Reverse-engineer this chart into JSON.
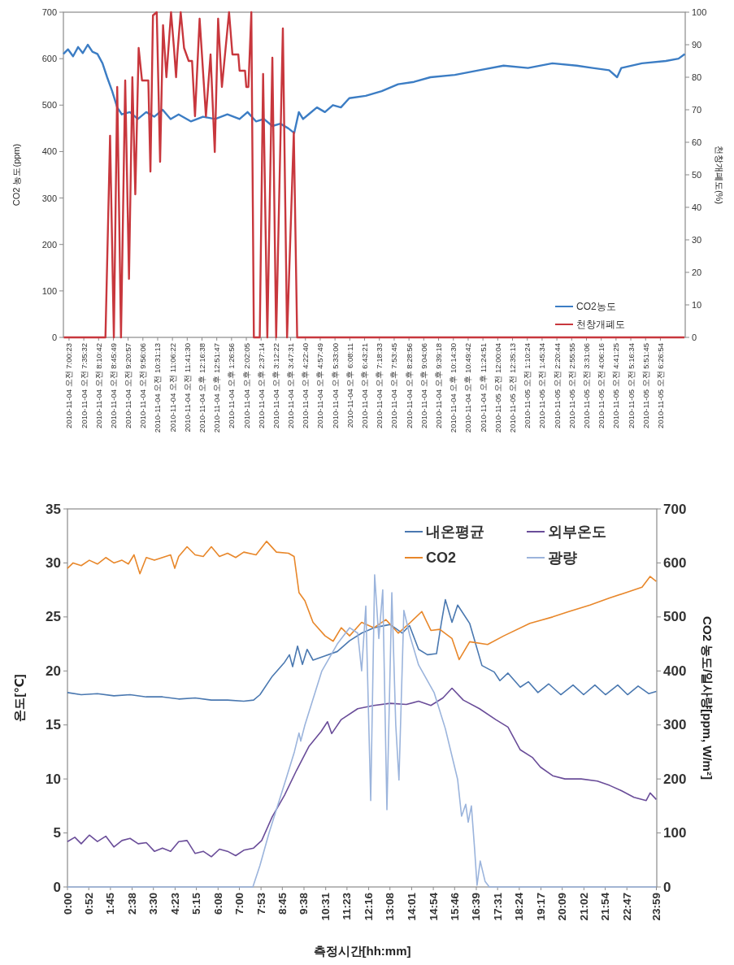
{
  "chart_data": [
    {
      "type": "line",
      "ylabel": "CO2 농도(ppm)",
      "y2label": "천창개폐도(%)",
      "legend": "bottom right",
      "xlim": [
        "2010-11-04T06:47",
        "2010-11-05T07:26"
      ],
      "xticks": [
        {
          "value": "2010-11-04T07:00:23",
          "label": "2010-11-04 오전 7:00:23"
        },
        {
          "value": "2010-11-04T07:35:32",
          "label": "2010-11-04 오전 7:35:32"
        },
        {
          "value": "2010-11-04T08:10:42",
          "label": "2010-11-04 오전 8:10:42"
        },
        {
          "value": "2010-11-04T08:45:49",
          "label": "2010-11-04 오전 8:45:49"
        },
        {
          "value": "2010-11-04T09:20:57",
          "label": "2010-11-04 오전 9:20:57"
        },
        {
          "value": "2010-11-04T09:56:06",
          "label": "2010-11-04 오전 9:56:06"
        },
        {
          "value": "2010-11-04T10:31:13",
          "label": "2010-11-04 오전 10:31:13"
        },
        {
          "value": "2010-11-04T11:06:22",
          "label": "2010-11-04 오전 11:06:22"
        },
        {
          "value": "2010-11-04T11:41:30",
          "label": "2010-11-04 오전 11:41:30"
        },
        {
          "value": "2010-11-04T12:16:38",
          "label": "2010-11-04 오후 12:16:38"
        },
        {
          "value": "2010-11-04T12:51:47",
          "label": "2010-11-04 오후 12:51:47"
        },
        {
          "value": "2010-11-04T13:26:56",
          "label": "2010-11-04 오후 1:26:56"
        },
        {
          "value": "2010-11-04T14:02:05",
          "label": "2010-11-04 오후 2:02:05"
        },
        {
          "value": "2010-11-04T14:37:14",
          "label": "2010-11-04 오후 2:37:14"
        },
        {
          "value": "2010-11-04T15:12:22",
          "label": "2010-11-04 오후 3:12:22"
        },
        {
          "value": "2010-11-04T15:47:31",
          "label": "2010-11-04 오후 3:47:31"
        },
        {
          "value": "2010-11-04T16:22:40",
          "label": "2010-11-04 오후 4:22:40"
        },
        {
          "value": "2010-11-04T16:57:49",
          "label": "2010-11-04 오후 4:57:49"
        },
        {
          "value": "2010-11-04T17:33:00",
          "label": "2010-11-04 오후 5:33:00"
        },
        {
          "value": "2010-11-04T18:08:11",
          "label": "2010-11-04 오후 6:08:11"
        },
        {
          "value": "2010-11-04T18:43:21",
          "label": "2010-11-04 오후 6:43:21"
        },
        {
          "value": "2010-11-04T19:18:33",
          "label": "2010-11-04 오후 7:18:33"
        },
        {
          "value": "2010-11-04T19:53:45",
          "label": "2010-11-04 오후 7:53:45"
        },
        {
          "value": "2010-11-04T20:28:56",
          "label": "2010-11-04 오후 8:28:56"
        },
        {
          "value": "2010-11-04T21:04:06",
          "label": "2010-11-04 오후 9:04:06"
        },
        {
          "value": "2010-11-04T21:39:18",
          "label": "2010-11-04 오후 9:39:18"
        },
        {
          "value": "2010-11-04T22:14:30",
          "label": "2010-11-04 오후 10:14:30"
        },
        {
          "value": "2010-11-04T22:49:42",
          "label": "2010-11-04 오후 10:49:42"
        },
        {
          "value": "2010-11-04T23:24:51",
          "label": "2010-11-04 오후 11:24:51"
        },
        {
          "value": "2010-11-05T00:00:04",
          "label": "2010-11-05 오전 12:00:04"
        },
        {
          "value": "2010-11-05T00:35:13",
          "label": "2010-11-05 오전 12:35:13"
        },
        {
          "value": "2010-11-05T01:10:24",
          "label": "2010-11-05 오전 1:10:24"
        },
        {
          "value": "2010-11-05T01:45:34",
          "label": "2010-11-05 오전 1:45:34"
        },
        {
          "value": "2010-11-05T02:20:44",
          "label": "2010-11-05 오전 2:20:44"
        },
        {
          "value": "2010-11-05T02:55:55",
          "label": "2010-11-05 오전 2:55:55"
        },
        {
          "value": "2010-11-05T03:31:06",
          "label": "2010-11-05 오전 3:31:06"
        },
        {
          "value": "2010-11-05T04:06:16",
          "label": "2010-11-05 오전 4:06:16"
        },
        {
          "value": "2010-11-05T04:41:25",
          "label": "2010-11-05 오전 4:41:25"
        },
        {
          "value": "2010-11-05T05:16:34",
          "label": "2010-11-05 오전 5:16:34"
        },
        {
          "value": "2010-11-05T05:51:45",
          "label": "2010-11-05 오전 5:51:45"
        },
        {
          "value": "2010-11-05T06:26:54",
          "label": "2010-11-05 오전 6:26:54"
        }
      ],
      "ylim": [
        0,
        700
      ],
      "yticks": [
        0,
        100,
        200,
        300,
        400,
        500,
        600,
        700
      ],
      "y2lim": [
        0,
        100
      ],
      "y2ticks": [
        0,
        10,
        20,
        30,
        40,
        50,
        60,
        70,
        80,
        90,
        100
      ],
      "series": [
        {
          "name": "CO2농도",
          "color": "#3c7dc4",
          "x": [
            "2010-11-04T06:47",
            "2010-11-04T06:58",
            "2010-11-04T07:10",
            "2010-11-04T07:22",
            "2010-11-04T07:33",
            "2010-11-04T07:45",
            "2010-11-04T07:56",
            "2010-11-04T08:08",
            "2010-11-04T08:20",
            "2010-11-04T08:31",
            "2010-11-04T08:43",
            "2010-11-04T08:55",
            "2010-11-04T09:06",
            "2010-11-04T09:25",
            "2010-11-04T09:44",
            "2010-11-04T10:04",
            "2010-11-04T10:23",
            "2010-11-04T10:43",
            "2010-11-04T11:02",
            "2010-11-04T11:21",
            "2010-11-04T11:50",
            "2010-11-04T12:19",
            "2010-11-04T12:48",
            "2010-11-04T13:17",
            "2010-11-04T13:46",
            "2010-11-04T14:05",
            "2010-11-04T14:25",
            "2010-11-04T14:44",
            "2010-11-04T15:04",
            "2010-11-04T15:23",
            "2010-11-04T15:42",
            "2010-11-04T15:56",
            "2010-11-04T16:07",
            "2010-11-04T16:17",
            "2010-11-04T16:30",
            "2010-11-04T16:50",
            "2010-11-04T17:09",
            "2010-11-04T17:28",
            "2010-11-04T17:47",
            "2010-11-04T18:07",
            "2010-11-04T18:46",
            "2010-11-04T19:24",
            "2010-11-04T20:03",
            "2010-11-04T20:41",
            "2010-11-04T21:20",
            "2010-11-04T22:18",
            "2010-11-04T23:16",
            "2010-11-05T00:14",
            "2010-11-05T01:12",
            "2010-11-05T02:10",
            "2010-11-05T03:08",
            "2010-11-05T03:46",
            "2010-11-05T04:25",
            "2010-11-05T04:44",
            "2010-11-05T04:54",
            "2010-11-05T05:43",
            "2010-11-05T06:40",
            "2010-11-05T07:10",
            "2010-11-05T07:25"
          ],
          "values": [
            610,
            620,
            605,
            625,
            612,
            630,
            615,
            610,
            590,
            560,
            530,
            495,
            480,
            485,
            470,
            485,
            475,
            490,
            470,
            480,
            465,
            475,
            470,
            480,
            470,
            485,
            465,
            470,
            455,
            460,
            450,
            440,
            485,
            470,
            480,
            495,
            485,
            500,
            495,
            515,
            520,
            530,
            545,
            550,
            560,
            565,
            575,
            585,
            580,
            590,
            585,
            580,
            575,
            560,
            580,
            590,
            595,
            600,
            610
          ]
        },
        {
          "name": "천창개폐도",
          "color": "#c8373d",
          "axis": "y2",
          "x": [
            "2010-11-04T06:48",
            "2010-11-04T08:27",
            "2010-11-04T08:38",
            "2010-11-04T08:47",
            "2010-11-04T08:55",
            "2010-11-04T09:04",
            "2010-11-04T09:14",
            "2010-11-04T09:23",
            "2010-11-04T09:31",
            "2010-11-04T09:38",
            "2010-11-04T09:46",
            "2010-11-04T09:54",
            "2010-11-04T10:09",
            "2010-11-04T10:14",
            "2010-11-04T10:20",
            "2010-11-04T10:29",
            "2010-11-04T10:37",
            "2010-11-04T10:44",
            "2010-11-04T10:52",
            "2010-11-04T11:03",
            "2010-11-04T11:10",
            "2010-11-04T11:15",
            "2010-11-04T11:18",
            "2010-11-04T11:26",
            "2010-11-04T11:34",
            "2010-11-04T11:45",
            "2010-11-04T11:53",
            "2010-11-04T12:00",
            "2010-11-04T12:11",
            "2010-11-04T12:26",
            "2010-11-04T12:37",
            "2010-11-04T12:47",
            "2010-11-04T12:55",
            "2010-11-04T13:04",
            "2010-11-04T13:21",
            "2010-11-04T13:29",
            "2010-11-04T13:43",
            "2010-11-04T13:46",
            "2010-11-04T13:59",
            "2010-11-04T14:02",
            "2010-11-04T14:07",
            "2010-11-04T14:14",
            "2010-11-04T14:20",
            "2010-11-04T14:34",
            "2010-11-04T14:42",
            "2010-11-04T14:52",
            "2010-11-04T15:04",
            "2010-11-04T15:13",
            "2010-11-04T15:29",
            "2010-11-04T15:39",
            "2010-11-04T15:55",
            "2010-11-04T16:03",
            "2010-11-05T07:24"
          ],
          "values": [
            0,
            0,
            62,
            0,
            77,
            0,
            79,
            18,
            80,
            44,
            89,
            79,
            79,
            51,
            99,
            100,
            54,
            96,
            80,
            100,
            89,
            80,
            87,
            100,
            89,
            85,
            85,
            68,
            98,
            68,
            87,
            57,
            98,
            77,
            100,
            87,
            87,
            82,
            82,
            77,
            77,
            100,
            0,
            0,
            81,
            0,
            86,
            0,
            95,
            0,
            63,
            0,
            0
          ]
        }
      ]
    },
    {
      "type": "line",
      "xlabel": "측정시간[hh:mm]",
      "ylabel": "온도[℃]",
      "y2label": "CO2 농도/일사량[ppm, W/m²]",
      "legend": "top right",
      "xlim": [
        0,
        24
      ],
      "xticks": [
        {
          "value": 0,
          "label": "0:00"
        },
        {
          "value": 0.867,
          "label": "0:52"
        },
        {
          "value": 1.75,
          "label": "1:45"
        },
        {
          "value": 2.633,
          "label": "2:38"
        },
        {
          "value": 3.5,
          "label": "3:30"
        },
        {
          "value": 4.383,
          "label": "4:23"
        },
        {
          "value": 5.25,
          "label": "5:15"
        },
        {
          "value": 6.133,
          "label": "6:08"
        },
        {
          "value": 7,
          "label": "7:00"
        },
        {
          "value": 7.883,
          "label": "7:53"
        },
        {
          "value": 8.75,
          "label": "8:45"
        },
        {
          "value": 9.633,
          "label": "9:38"
        },
        {
          "value": 10.517,
          "label": "10:31"
        },
        {
          "value": 11.383,
          "label": "11:23"
        },
        {
          "value": 12.267,
          "label": "12:16"
        },
        {
          "value": 13.133,
          "label": "13:08"
        },
        {
          "value": 14.017,
          "label": "14:01"
        },
        {
          "value": 14.9,
          "label": "14:54"
        },
        {
          "value": 15.767,
          "label": "15:46"
        },
        {
          "value": 16.65,
          "label": "16:39"
        },
        {
          "value": 17.517,
          "label": "17:31"
        },
        {
          "value": 18.4,
          "label": "18:24"
        },
        {
          "value": 19.283,
          "label": "19:17"
        },
        {
          "value": 20.15,
          "label": "20:09"
        },
        {
          "value": 21.033,
          "label": "21:02"
        },
        {
          "value": 21.9,
          "label": "21:54"
        },
        {
          "value": 22.783,
          "label": "22:47"
        },
        {
          "value": 23.983,
          "label": "23:59"
        }
      ],
      "ylim": [
        0,
        35
      ],
      "yticks": [
        0,
        5,
        10,
        15,
        20,
        25,
        30,
        35
      ],
      "y2lim": [
        0,
        700
      ],
      "y2ticks": [
        0,
        100,
        200,
        300,
        400,
        500,
        600,
        700
      ],
      "series": [
        {
          "name": "내온평균",
          "color": "#4a78b0",
          "x": [
            0,
            0.56,
            1.22,
            1.89,
            2.55,
            3.21,
            3.87,
            4.53,
            5.2,
            5.86,
            6.52,
            7.18,
            7.58,
            7.84,
            8.34,
            8.84,
            9.04,
            9.17,
            9.37,
            9.57,
            9.76,
            10.0,
            10.49,
            10.99,
            11.49,
            11.98,
            12.48,
            13.14,
            13.64,
            13.93,
            14.3,
            14.66,
            15.03,
            15.23,
            15.39,
            15.66,
            15.89,
            16.38,
            16.88,
            17.38,
            17.61,
            17.94,
            18.44,
            18.77,
            19.16,
            19.6,
            20.09,
            20.59,
            21.02,
            21.48,
            21.91,
            22.41,
            22.81,
            23.24,
            23.67,
            23.98
          ],
          "values": [
            18.0,
            17.8,
            17.9,
            17.7,
            17.8,
            17.6,
            17.6,
            17.4,
            17.5,
            17.3,
            17.3,
            17.2,
            17.3,
            17.8,
            19.5,
            20.8,
            21.5,
            20.4,
            22.3,
            20.6,
            22.0,
            21.0,
            21.4,
            21.8,
            22.8,
            23.5,
            24.0,
            24.3,
            23.5,
            24.2,
            22.0,
            21.5,
            21.6,
            24.5,
            26.6,
            24.5,
            26.1,
            24.4,
            20.5,
            19.9,
            19.1,
            19.8,
            18.5,
            19.0,
            18.0,
            18.8,
            17.8,
            18.7,
            17.8,
            18.7,
            17.8,
            18.7,
            17.8,
            18.6,
            17.9,
            18.1
          ]
        },
        {
          "name": "외부온도",
          "color": "#6a4d99",
          "x": [
            0,
            0.3,
            0.56,
            0.89,
            1.22,
            1.56,
            1.89,
            2.22,
            2.55,
            2.88,
            3.21,
            3.54,
            3.87,
            4.2,
            4.53,
            4.87,
            5.2,
            5.53,
            5.86,
            6.19,
            6.52,
            6.85,
            7.18,
            7.58,
            7.91,
            8.34,
            8.84,
            9.33,
            9.83,
            10.33,
            10.59,
            10.76,
            11.15,
            11.82,
            12.48,
            13.14,
            13.8,
            14.3,
            14.8,
            15.29,
            15.66,
            16.12,
            16.78,
            17.44,
            17.94,
            18.44,
            18.93,
            19.26,
            19.76,
            20.26,
            20.92,
            21.58,
            22.08,
            22.57,
            23.07,
            23.57,
            23.73,
            23.98
          ],
          "values": [
            4.2,
            4.6,
            4.0,
            4.8,
            4.2,
            4.7,
            3.7,
            4.3,
            4.5,
            4.0,
            4.1,
            3.3,
            3.6,
            3.3,
            4.2,
            4.3,
            3.1,
            3.3,
            2.8,
            3.5,
            3.3,
            2.9,
            3.4,
            3.6,
            4.3,
            6.5,
            8.5,
            10.8,
            13.0,
            14.4,
            15.3,
            14.2,
            15.5,
            16.5,
            16.8,
            17.0,
            16.9,
            17.2,
            16.8,
            17.5,
            18.4,
            17.3,
            16.5,
            15.5,
            14.8,
            12.7,
            12.0,
            11.1,
            10.3,
            10.0,
            10.0,
            9.8,
            9.4,
            8.9,
            8.3,
            8.0,
            8.7,
            8.1
          ]
        },
        {
          "name": "CO2",
          "color": "#e8872a",
          "axis": "y2",
          "x": [
            0,
            0.23,
            0.56,
            0.89,
            1.22,
            1.56,
            1.89,
            2.22,
            2.48,
            2.71,
            2.95,
            3.21,
            3.54,
            3.87,
            4.2,
            4.37,
            4.53,
            4.87,
            5.2,
            5.53,
            5.86,
            6.19,
            6.52,
            6.85,
            7.18,
            7.68,
            8.11,
            8.51,
            9.0,
            9.23,
            9.43,
            9.67,
            10.0,
            10.49,
            10.82,
            11.15,
            11.49,
            11.98,
            12.48,
            12.97,
            13.47,
            13.97,
            14.43,
            14.8,
            15.16,
            15.66,
            15.95,
            16.38,
            17.11,
            17.77,
            18.83,
            19.76,
            20.42,
            21.28,
            22.08,
            22.74,
            23.4,
            23.73,
            23.98
          ],
          "values": [
            590,
            600,
            595,
            605,
            598,
            610,
            600,
            605,
            598,
            615,
            580,
            610,
            605,
            610,
            615,
            590,
            612,
            630,
            615,
            612,
            630,
            612,
            618,
            610,
            620,
            615,
            640,
            620,
            618,
            612,
            545,
            530,
            490,
            465,
            455,
            480,
            465,
            490,
            480,
            495,
            470,
            490,
            510,
            475,
            477,
            460,
            421,
            454,
            449,
            465,
            488,
            500,
            510,
            522,
            535,
            545,
            555,
            575,
            566
          ]
        },
        {
          "name": "광량",
          "color": "#9bb4dc",
          "axis": "y2",
          "x": [
            0,
            7.55,
            7.84,
            8.21,
            8.9,
            9.24,
            9.43,
            9.5,
            9.67,
            10.36,
            10.99,
            11.49,
            11.82,
            11.98,
            12.15,
            12.35,
            12.51,
            12.68,
            12.84,
            13.01,
            13.21,
            13.37,
            13.5,
            13.7,
            13.94,
            14.3,
            14.93,
            15.39,
            15.89,
            16.05,
            16.22,
            16.32,
            16.45,
            16.58,
            16.68,
            16.81,
            17.01,
            17.18,
            23.98
          ],
          "values": [
            0,
            0,
            40,
            100,
            200,
            250,
            285,
            270,
            300,
            400,
            450,
            480,
            470,
            400,
            520,
            160,
            578,
            460,
            550,
            143,
            545,
            300,
            198,
            512,
            466,
            411,
            360,
            293,
            199,
            131,
            153,
            120,
            150,
            71,
            3,
            48,
            10,
            0,
            0
          ]
        }
      ]
    }
  ]
}
